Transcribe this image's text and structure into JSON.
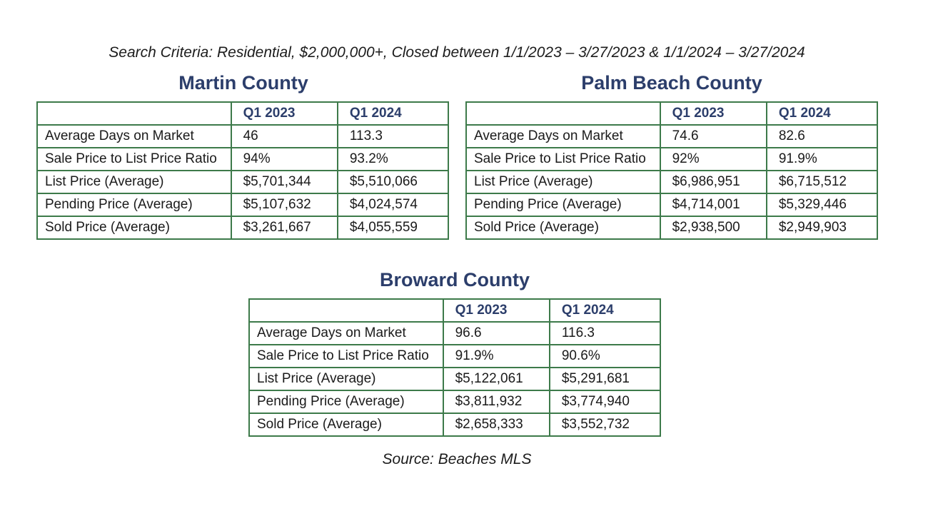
{
  "criteria": "Search Criteria: Residential, $2,000,000+, Closed between 1/1/2023 – 3/27/2023 & 1/1/2024 – 3/27/2024",
  "source": "Source: Beaches MLS",
  "columns": [
    "",
    "Q1 2023",
    "Q1 2024"
  ],
  "counties": [
    {
      "name": "Martin County",
      "rows": [
        {
          "label": "Average Days on Market",
          "q1_2023": "46",
          "q1_2024": "113.3"
        },
        {
          "label": "Sale Price to List Price Ratio",
          "q1_2023": "94%",
          "q1_2024": "93.2%"
        },
        {
          "label": "List Price (Average)",
          "q1_2023": "$5,701,344",
          "q1_2024": "$5,510,066"
        },
        {
          "label": "Pending Price (Average)",
          "q1_2023": "$5,107,632",
          "q1_2024": "$4,024,574"
        },
        {
          "label": "Sold Price (Average)",
          "q1_2023": "$3,261,667",
          "q1_2024": "$4,055,559"
        }
      ]
    },
    {
      "name": "Palm Beach County",
      "rows": [
        {
          "label": "Average Days on Market",
          "q1_2023": "74.6",
          "q1_2024": "82.6"
        },
        {
          "label": "Sale Price to List Price Ratio",
          "q1_2023": "92%",
          "q1_2024": "91.9%"
        },
        {
          "label": "List Price (Average)",
          "q1_2023": "$6,986,951",
          "q1_2024": "$6,715,512"
        },
        {
          "label": "Pending Price (Average)",
          "q1_2023": "$4,714,001",
          "q1_2024": "$5,329,446"
        },
        {
          "label": "Sold Price (Average)",
          "q1_2023": "$2,938,500",
          "q1_2024": "$2,949,903"
        }
      ]
    },
    {
      "name": "Broward County",
      "rows": [
        {
          "label": "Average Days on Market",
          "q1_2023": "96.6",
          "q1_2024": "116.3"
        },
        {
          "label": "Sale Price to List Price Ratio",
          "q1_2023": "91.9%",
          "q1_2024": "90.6%"
        },
        {
          "label": "List Price (Average)",
          "q1_2023": "$5,122,061",
          "q1_2024": "$5,291,681"
        },
        {
          "label": "Pending Price (Average)",
          "q1_2023": "$3,811,932",
          "q1_2024": "$3,774,940"
        },
        {
          "label": "Sold Price (Average)",
          "q1_2023": "$2,658,333",
          "q1_2024": "$3,552,732"
        }
      ]
    }
  ]
}
